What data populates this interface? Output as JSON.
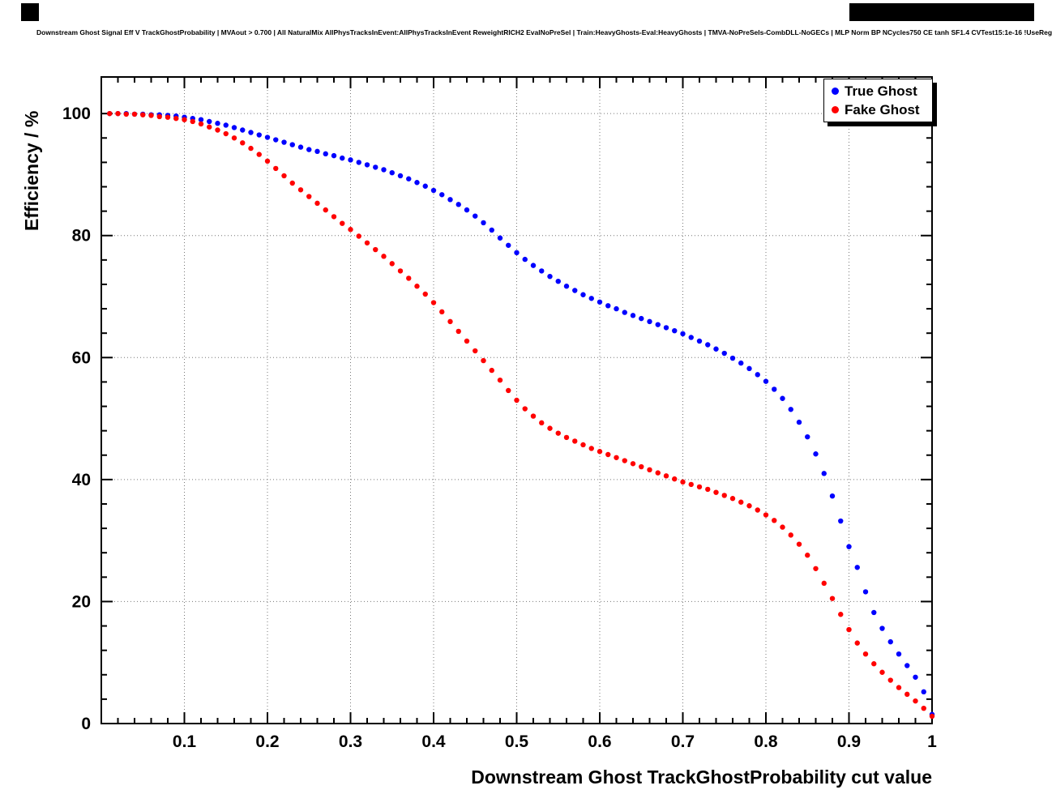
{
  "page": {
    "title": "Downstream Ghost Signal Eff V TrackGhostProbability | MVAout > 0.700 | All NaturalMix AllPhysTracksInEvent:AllPhysTracksInEvent ReweightRICH2 EvalNoPreSel | Train:HeavyGhosts-Eval:HeavyGhosts | TMVA-NoPreSels-CombDLL-NoGECs | MLP Norm BP NCycles750 CE tanh SF1.4 CVTest15:1e-16 !UseReg"
  },
  "legend": {
    "entries": [
      {
        "label": "True Ghost",
        "color": "#0000ff"
      },
      {
        "label": "Fake Ghost",
        "color": "#ff0000"
      }
    ]
  },
  "chart_data": {
    "type": "scatter",
    "title": "Downstream Ghost Signal Eff V TrackGhostProbability | MVAout > 0.700 | All NaturalMix AllPhysTracksInEvent:AllPhysTracksInEvent ReweightRICH2 EvalNoPreSel | Train:HeavyGhosts-Eval:HeavyGhosts | TMVA-NoPreSels-CombDLL-NoGECs | MLP Norm BP NCycles750 CE tanh SF1.4 CVTest15:1e-16 !UseReg",
    "xlabel": "Downstream Ghost TrackGhostProbability cut value",
    "ylabel": "Efficiency / %",
    "xlim": [
      0,
      1
    ],
    "ylim": [
      0,
      106
    ],
    "grid": true,
    "legend_position": "top-right",
    "x_ticks": {
      "major": [
        0,
        0.1,
        0.2,
        0.3,
        0.4,
        0.5,
        0.6,
        0.7,
        0.8,
        0.9,
        1
      ],
      "label_values": [
        0.1,
        0.2,
        0.3,
        0.4,
        0.5,
        0.6,
        0.7,
        0.8,
        0.9,
        1
      ],
      "labels": [
        "0.1",
        "0.2",
        "0.3",
        "0.4",
        "0.5",
        "0.6",
        "0.7",
        "0.8",
        "0.9",
        "1"
      ],
      "minor_step": 0.02
    },
    "y_ticks": {
      "major": [
        0,
        20,
        40,
        60,
        80,
        100
      ],
      "labels": [
        "0",
        "20",
        "40",
        "60",
        "80",
        "100"
      ],
      "minor_step": 4
    },
    "x": [
      0.01,
      0.02,
      0.03,
      0.04,
      0.05,
      0.06,
      0.07,
      0.08,
      0.09,
      0.1,
      0.11,
      0.12,
      0.13,
      0.14,
      0.15,
      0.16,
      0.17,
      0.18,
      0.19,
      0.2,
      0.21,
      0.22,
      0.23,
      0.24,
      0.25,
      0.26,
      0.27,
      0.28,
      0.29,
      0.3,
      0.31,
      0.32,
      0.33,
      0.34,
      0.35,
      0.36,
      0.37,
      0.38,
      0.39,
      0.4,
      0.41,
      0.42,
      0.43,
      0.44,
      0.45,
      0.46,
      0.47,
      0.48,
      0.49,
      0.5,
      0.51,
      0.52,
      0.53,
      0.54,
      0.55,
      0.56,
      0.57,
      0.58,
      0.59,
      0.6,
      0.61,
      0.62,
      0.63,
      0.64,
      0.65,
      0.66,
      0.67,
      0.68,
      0.69,
      0.7,
      0.71,
      0.72,
      0.73,
      0.74,
      0.75,
      0.76,
      0.77,
      0.78,
      0.79,
      0.8,
      0.81,
      0.82,
      0.83,
      0.84,
      0.85,
      0.86,
      0.87,
      0.88,
      0.89,
      0.9,
      0.91,
      0.92,
      0.93,
      0.94,
      0.95,
      0.96,
      0.97,
      0.98,
      0.99,
      1.0
    ],
    "series": [
      {
        "name": "True Ghost",
        "color": "#0000ff",
        "marker": "circle",
        "values": [
          100,
          100,
          100,
          99.9,
          99.9,
          99.8,
          99.8,
          99.7,
          99.6,
          99.4,
          99.2,
          99,
          98.7,
          98.4,
          98.1,
          97.7,
          97.3,
          96.9,
          96.5,
          96.1,
          95.7,
          95.3,
          94.9,
          94.5,
          94.1,
          93.8,
          93.4,
          93.1,
          92.7,
          92.4,
          92,
          91.6,
          91.2,
          90.8,
          90.3,
          89.8,
          89.3,
          88.7,
          88.1,
          87.4,
          86.7,
          85.9,
          85.1,
          84.2,
          83.2,
          82.1,
          80.9,
          79.6,
          78.4,
          77.2,
          76.1,
          75.1,
          74.2,
          73.3,
          72.5,
          71.7,
          71,
          70.3,
          69.7,
          69.1,
          68.5,
          68,
          67.4,
          66.9,
          66.4,
          65.9,
          65.4,
          64.9,
          64.4,
          63.9,
          63.3,
          62.7,
          62.1,
          61.4,
          60.7,
          59.9,
          59.1,
          58.2,
          57.2,
          56.1,
          54.8,
          53.3,
          51.5,
          49.4,
          47,
          44.2,
          41,
          37.3,
          33.2,
          29,
          25.6,
          21.6,
          18.2,
          15.6,
          13.4,
          11.4,
          9.5,
          7.6,
          5.2,
          1.5
        ]
      },
      {
        "name": "Fake Ghost",
        "color": "#ff0000",
        "marker": "circle",
        "values": [
          100,
          100,
          99.9,
          99.9,
          99.8,
          99.7,
          99.5,
          99.4,
          99.2,
          99,
          98.7,
          98.3,
          97.8,
          97.3,
          96.7,
          96,
          95.2,
          94.3,
          93.3,
          92.2,
          91,
          89.8,
          88.6,
          87.5,
          86.4,
          85.3,
          84.2,
          83.1,
          82,
          81,
          79.9,
          78.8,
          77.7,
          76.6,
          75.4,
          74.2,
          73,
          71.7,
          70.4,
          69,
          67.5,
          65.9,
          64.3,
          62.7,
          61.1,
          59.5,
          57.9,
          56.3,
          54.6,
          53,
          51.6,
          50.4,
          49.3,
          48.4,
          47.6,
          46.9,
          46.3,
          45.7,
          45.1,
          44.6,
          44.1,
          43.6,
          43.1,
          42.6,
          42.1,
          41.6,
          41.1,
          40.6,
          40.1,
          39.6,
          39.2,
          38.8,
          38.4,
          37.9,
          37.4,
          36.9,
          36.3,
          35.7,
          35,
          34.2,
          33.3,
          32.2,
          30.9,
          29.4,
          27.6,
          25.4,
          23,
          20.5,
          17.9,
          15.4,
          13.2,
          11.4,
          9.8,
          8.4,
          7.1,
          5.9,
          4.8,
          3.7,
          2.5,
          1.2
        ]
      }
    ]
  }
}
